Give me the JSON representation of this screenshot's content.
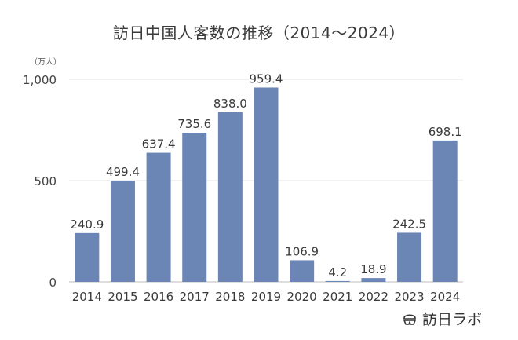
{
  "chart_data": {
    "type": "bar",
    "title": "訪日中国人客数の推移（2014～2024）",
    "unit": "（万人）",
    "categories": [
      "2014",
      "2015",
      "2016",
      "2017",
      "2018",
      "2019",
      "2020",
      "2021",
      "2022",
      "2023",
      "2024"
    ],
    "values": [
      240.9,
      499.4,
      637.4,
      735.6,
      838.0,
      959.4,
      106.9,
      4.2,
      18.9,
      242.5,
      698.1
    ],
    "value_labels": [
      "240.9",
      "499.4",
      "637.4",
      "735.6",
      "838.0",
      "959.4",
      "106.9",
      "4.2",
      "18.9",
      "242.5",
      "698.1"
    ],
    "yticks": [
      0,
      500,
      1000
    ],
    "ytick_labels": [
      "0",
      "500",
      "1,000"
    ],
    "ylim": [
      0,
      1000
    ],
    "xlabel": "",
    "ylabel": "",
    "grid": true,
    "bar_color": "#6b86b4",
    "grid_color": "#e3e3e3"
  },
  "brand": {
    "name": "訪日ラボ",
    "icon": "tooth-logo-icon"
  }
}
